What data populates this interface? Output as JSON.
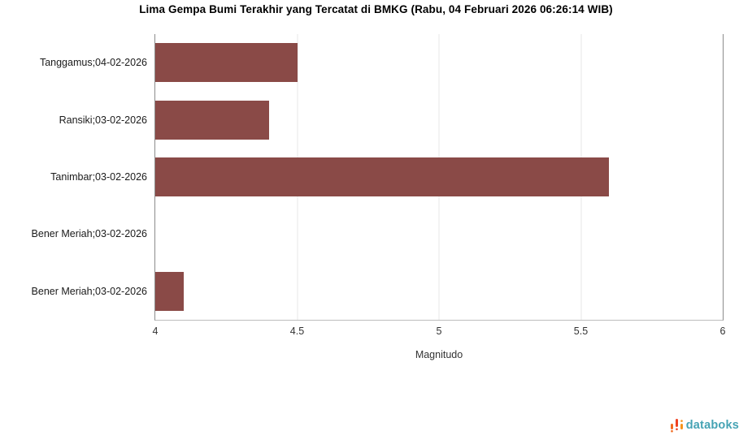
{
  "chart_data": {
    "type": "bar",
    "orientation": "horizontal",
    "title": "Lima Gempa Bumi Terakhir yang Tercatat di BMKG (Rabu, 04 Februari 2026 06:26:14 WIB)",
    "categories": [
      "Tanggamus;04-02-2026",
      "Ransiki;03-02-2026",
      "Tanimbar;03-02-2026",
      "Bener Meriah;03-02-2026",
      "Bener Meriah;03-02-2026"
    ],
    "values": [
      4.5,
      4.4,
      5.6,
      4.0,
      4.1
    ],
    "xlabel": "Magnitudo",
    "xlim": [
      4,
      6
    ],
    "xtick_values": [
      4,
      4.5,
      5,
      5.5,
      6
    ],
    "xtick_labels": [
      "4",
      "4.5",
      "5",
      "5.5",
      "6"
    ],
    "grid": "vertical",
    "legend": "none",
    "bar_color": "#8a4a47"
  },
  "branding": {
    "logo_text": "databoks",
    "logo_text_color": "#45a3b4",
    "logo_icon_colors": [
      "#f26b21",
      "#ef4123",
      "#f7941d"
    ]
  }
}
